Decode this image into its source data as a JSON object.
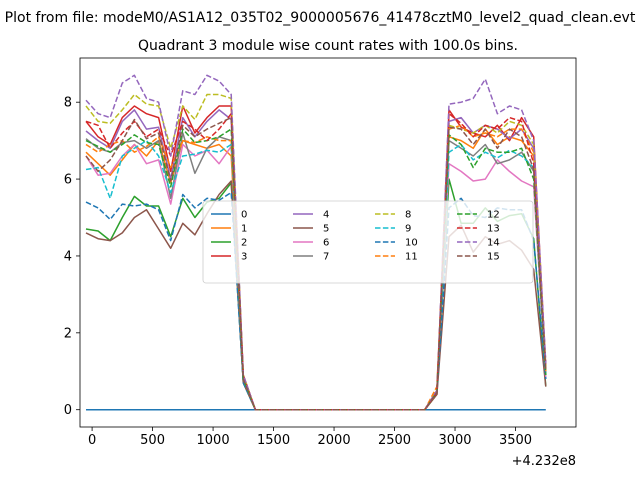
{
  "chart_data": {
    "type": "line",
    "suptitle": "Plot from file: modeM0/AS1A12_035T02_9000005676_41478cztM0_level2_quad_clean.evt",
    "title": "Quadrant 3 module wise count rates with 100.0s bins.",
    "xlabel": "",
    "ylabel": "",
    "x_offset_label": "+4.232e8",
    "xlim": [
      -100,
      4000
    ],
    "ylim": [
      -0.45,
      9.15
    ],
    "xticks": [
      0,
      500,
      1000,
      1500,
      2000,
      2500,
      3000,
      3500
    ],
    "yticks": [
      0,
      2,
      4,
      6,
      8
    ],
    "grid": false,
    "legend": {
      "position": "center",
      "ncol": 4
    },
    "x": [
      -50,
      50,
      150,
      250,
      350,
      450,
      550,
      650,
      750,
      850,
      950,
      1050,
      1150,
      1250,
      1350,
      1450,
      1550,
      1650,
      1750,
      1850,
      1950,
      2050,
      2150,
      2250,
      2350,
      2450,
      2550,
      2650,
      2750,
      2850,
      2950,
      3050,
      3150,
      3250,
      3350,
      3450,
      3550,
      3650,
      3750
    ],
    "series": [
      {
        "name": "0",
        "color": "#1f77b4",
        "dash": "solid",
        "values": [
          0,
          0,
          0,
          0,
          0,
          0,
          0,
          0,
          0,
          0,
          0,
          0,
          0,
          0,
          0,
          0,
          0,
          0,
          0,
          0,
          0,
          0,
          0,
          0,
          0,
          0,
          0,
          0,
          0,
          0,
          0,
          0,
          0,
          0,
          0,
          0,
          0,
          0,
          0
        ]
      },
      {
        "name": "1",
        "color": "#ff7f0e",
        "dash": "solid",
        "values": [
          6.7,
          6.4,
          6.1,
          6.5,
          6.9,
          6.6,
          7.0,
          5.9,
          7.0,
          6.9,
          6.8,
          6.9,
          6.6,
          0.8,
          0,
          0,
          0,
          0,
          0,
          0,
          0,
          0,
          0,
          0,
          0,
          0,
          0,
          0,
          0,
          0.5,
          7.1,
          7.0,
          6.8,
          7.3,
          6.9,
          7.1,
          7.0,
          6.6,
          0.9
        ]
      },
      {
        "name": "2",
        "color": "#2ca02c",
        "dash": "solid",
        "values": [
          4.7,
          4.65,
          4.4,
          5.0,
          5.55,
          5.3,
          5.3,
          4.5,
          5.5,
          5.0,
          5.4,
          5.5,
          5.9,
          0.7,
          0,
          0,
          0,
          0,
          0,
          0,
          0,
          0,
          0,
          0,
          0,
          0,
          0,
          0,
          0,
          0.4,
          6.0,
          4.85,
          4.85,
          5.25,
          4.9,
          5.05,
          5.1,
          4.45,
          0.6
        ]
      },
      {
        "name": "3",
        "color": "#d62728",
        "dash": "solid",
        "values": [
          7.5,
          7.1,
          6.9,
          7.6,
          7.9,
          7.7,
          7.6,
          6.2,
          7.9,
          7.2,
          7.6,
          7.9,
          7.9,
          0.9,
          0,
          0,
          0,
          0,
          0,
          0,
          0,
          0,
          0,
          0,
          0,
          0,
          0,
          0,
          0,
          0.4,
          7.8,
          7.35,
          7.2,
          7.1,
          7.4,
          7.0,
          7.6,
          7.1,
          1.1
        ]
      },
      {
        "name": "4",
        "color": "#9467bd",
        "dash": "solid",
        "values": [
          7.25,
          7.0,
          6.8,
          7.5,
          7.8,
          7.3,
          7.35,
          6.0,
          7.6,
          7.1,
          7.5,
          7.8,
          7.55,
          0.8,
          0,
          0,
          0,
          0,
          0,
          0,
          0,
          0,
          0,
          0,
          0,
          0,
          0,
          0,
          0,
          0.5,
          7.5,
          7.6,
          7.2,
          7.4,
          7.3,
          7.05,
          7.3,
          6.8,
          0.95
        ]
      },
      {
        "name": "5",
        "color": "#8c564b",
        "dash": "solid",
        "values": [
          4.6,
          4.45,
          4.4,
          4.6,
          5.0,
          5.2,
          4.7,
          4.2,
          4.85,
          4.55,
          5.1,
          5.6,
          5.95,
          0.7,
          0,
          0,
          0,
          0,
          0,
          0,
          0,
          0,
          0,
          0,
          0,
          0,
          0,
          0,
          0,
          0.4,
          4.5,
          4.8,
          4.1,
          4.5,
          4.3,
          4.4,
          4.15,
          3.65,
          0.6
        ]
      },
      {
        "name": "6",
        "color": "#e377c2",
        "dash": "solid",
        "values": [
          6.6,
          6.1,
          6.15,
          6.6,
          6.9,
          6.4,
          6.5,
          5.35,
          6.9,
          6.6,
          6.75,
          6.4,
          6.85,
          0.8,
          0,
          0,
          0,
          0,
          0,
          0,
          0,
          0,
          0,
          0,
          0,
          0,
          0,
          0,
          0,
          0.45,
          6.4,
          6.2,
          5.95,
          6.0,
          6.5,
          6.2,
          5.95,
          5.8,
          0.8
        ]
      },
      {
        "name": "7",
        "color": "#7f7f7f",
        "dash": "solid",
        "values": [
          7.05,
          6.8,
          6.7,
          6.95,
          7.0,
          6.8,
          7.0,
          5.5,
          7.2,
          6.15,
          6.8,
          7.1,
          7.0,
          0.8,
          0,
          0,
          0,
          0,
          0,
          0,
          0,
          0,
          0,
          0,
          0,
          0,
          0,
          0,
          0,
          0.45,
          7.0,
          6.8,
          6.6,
          6.9,
          6.4,
          6.5,
          6.7,
          6.2,
          0.9
        ]
      },
      {
        "name": "8",
        "color": "#bcbd22",
        "dash": "dashed",
        "values": [
          7.9,
          7.5,
          7.45,
          7.8,
          8.2,
          7.95,
          7.9,
          6.8,
          7.9,
          7.55,
          8.2,
          8.2,
          8.1,
          0.9,
          0,
          0,
          0,
          0,
          0,
          0,
          0,
          0,
          0,
          0,
          0,
          0,
          0,
          0,
          0,
          0.5,
          7.4,
          7.3,
          7.2,
          7.4,
          7.2,
          7.5,
          7.4,
          6.9,
          1.1
        ]
      },
      {
        "name": "9",
        "color": "#17becf",
        "dash": "dashed",
        "values": [
          6.25,
          6.3,
          5.5,
          6.6,
          6.8,
          7.0,
          6.6,
          5.65,
          6.6,
          6.65,
          6.75,
          6.7,
          6.9,
          0.8,
          0,
          0,
          0,
          0,
          0,
          0,
          0,
          0,
          0,
          0,
          0,
          0,
          0,
          0,
          0,
          0.45,
          6.7,
          6.9,
          6.5,
          6.7,
          6.55,
          6.75,
          6.6,
          6.3,
          0.9
        ]
      },
      {
        "name": "10",
        "color": "#1f77b4",
        "dash": "dashed",
        "values": [
          5.4,
          5.25,
          4.95,
          5.35,
          5.3,
          5.35,
          5.2,
          4.4,
          5.6,
          5.25,
          5.5,
          5.45,
          5.65,
          0.7,
          0,
          0,
          0,
          0,
          0,
          0,
          0,
          0,
          0,
          0,
          0,
          0,
          0,
          0,
          0,
          0.45,
          5.25,
          5.5,
          5.05,
          5.0,
          5.25,
          5.2,
          5.2,
          4.4,
          0.8
        ]
      },
      {
        "name": "11",
        "color": "#ff7f0e",
        "dash": "dashed",
        "values": [
          6.9,
          6.7,
          6.9,
          7.0,
          6.7,
          6.85,
          7.1,
          6.3,
          7.0,
          6.95,
          7.1,
          7.0,
          7.0,
          0.8,
          0,
          0,
          0,
          0,
          0,
          0,
          0,
          0,
          0,
          0,
          0,
          0,
          0,
          0,
          0,
          0.6,
          7.3,
          7.4,
          7.1,
          7.2,
          7.1,
          7.3,
          7.3,
          6.7,
          1.0
        ]
      },
      {
        "name": "12",
        "color": "#2ca02c",
        "dash": "dashed",
        "values": [
          7.0,
          6.85,
          6.7,
          6.9,
          7.15,
          6.95,
          6.9,
          5.8,
          7.3,
          6.95,
          7.0,
          7.1,
          7.3,
          0.8,
          0,
          0,
          0,
          0,
          0,
          0,
          0,
          0,
          0,
          0,
          0,
          0,
          0,
          0,
          0,
          0.45,
          7.15,
          6.9,
          6.3,
          6.8,
          6.7,
          6.7,
          6.8,
          6.0,
          0.9
        ]
      },
      {
        "name": "13",
        "color": "#d62728",
        "dash": "dashed",
        "values": [
          7.5,
          7.4,
          6.8,
          7.2,
          7.5,
          7.1,
          7.3,
          6.6,
          7.5,
          7.3,
          7.0,
          7.3,
          7.7,
          0.9,
          0,
          0,
          0,
          0,
          0,
          0,
          0,
          0,
          0,
          0,
          0,
          0,
          0,
          0,
          0,
          0.45,
          7.7,
          7.45,
          7.1,
          7.4,
          7.3,
          7.6,
          7.5,
          6.4,
          1.2
        ]
      },
      {
        "name": "14",
        "color": "#9467bd",
        "dash": "dashed",
        "values": [
          8.05,
          7.7,
          7.6,
          8.5,
          8.7,
          8.1,
          8.0,
          6.6,
          8.3,
          8.2,
          8.7,
          8.55,
          8.2,
          0.9,
          0,
          0,
          0,
          0,
          0,
          0,
          0,
          0,
          0,
          0,
          0,
          0,
          0,
          0,
          0,
          0.5,
          7.95,
          8.0,
          8.1,
          8.6,
          7.7,
          7.9,
          7.8,
          7.0,
          1.2
        ]
      },
      {
        "name": "15",
        "color": "#8c564b",
        "dash": "dashed",
        "values": [
          6.6,
          6.2,
          6.5,
          7.0,
          7.55,
          7.05,
          7.2,
          5.95,
          7.4,
          7.1,
          7.3,
          7.45,
          7.6,
          0.8,
          0,
          0,
          0,
          0,
          0,
          0,
          0,
          0,
          0,
          0,
          0,
          0,
          0,
          0,
          0,
          0.45,
          7.35,
          7.3,
          6.9,
          7.3,
          6.8,
          7.3,
          7.1,
          6.25,
          1.0
        ]
      }
    ]
  }
}
